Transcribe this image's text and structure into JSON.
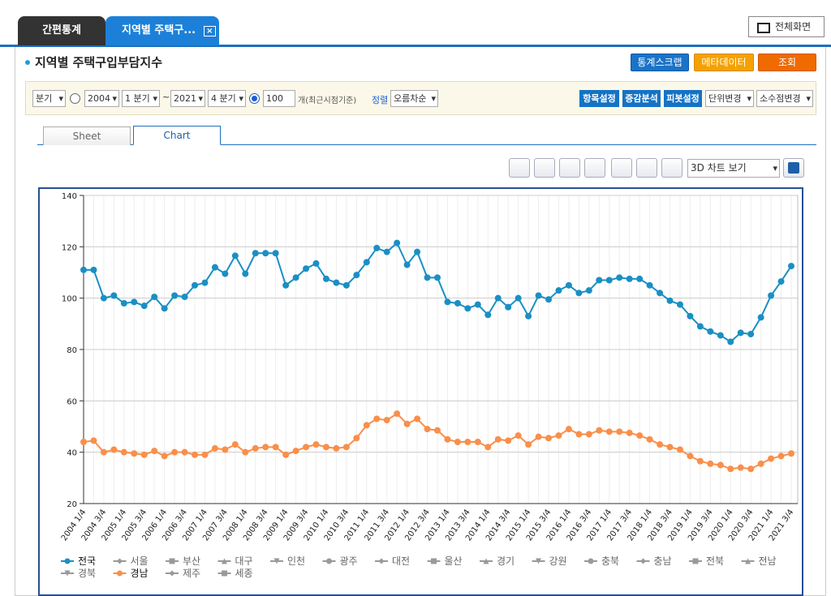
{
  "tabs": [
    "간편통계",
    "지역별 주택구..."
  ],
  "fullscreen": "전체화면",
  "page_title": "지역별 주택구입부담지수",
  "actions": [
    "통계스크랩",
    "메타데이터",
    "조회"
  ],
  "filter": {
    "period_type": "분기",
    "start_year": "2004",
    "start_quarter": "1 분기",
    "range_sep": "~",
    "end_year": "2021",
    "end_quarter": "4 분기",
    "recent_count": "100",
    "recent_unit": "개(최근시점기준)",
    "sort_label": "정렬",
    "sort": "오름차순"
  },
  "tools": [
    "항목설정",
    "증감분석",
    "피봇설정"
  ],
  "options": [
    "단위변경",
    "소수점변경"
  ],
  "view_tabs": [
    "Sheet",
    "Chart"
  ],
  "chart_view": "3D 차트 보기",
  "chart_data": {
    "type": "line",
    "categories": [
      "2004 1/4",
      null,
      "2004 3/4",
      null,
      "2005 1/4",
      null,
      "2005 3/4",
      null,
      "2006 1/4",
      null,
      "2006 3/4",
      null,
      "2007 1/4",
      null,
      "2007 3/4",
      null,
      "2008 1/4",
      null,
      "2008 3/4",
      null,
      "2009 1/4",
      null,
      "2009 3/4",
      null,
      "2010 1/4",
      null,
      "2010 3/4",
      null,
      "2011 1/4",
      null,
      "2011 3/4",
      null,
      "2012 1/4",
      null,
      "2012 3/4",
      null,
      "2013 1/4",
      null,
      "2013 3/4",
      null,
      "2014 1/4",
      null,
      "2014 3/4",
      null,
      "2015 1/4",
      null,
      "2015 3/4",
      null,
      "2016 1/4",
      null,
      "2016 3/4",
      null,
      "2017 1/4",
      null,
      "2017 3/4",
      null,
      "2018 1/4",
      null,
      "2018 3/4",
      null,
      "2019 1/4",
      null,
      "2019 3/4",
      null,
      "2020 1/4",
      null,
      "2020 3/4",
      null,
      "2021 1/4",
      null,
      "2021 3/4"
    ],
    "series": [
      {
        "name": "전국",
        "color": "#1a8fc4",
        "visible": true,
        "values": [
          111,
          111,
          100,
          101,
          98,
          98.5,
          97,
          100.5,
          96,
          101,
          100.5,
          105,
          106,
          112,
          109.5,
          116.5,
          109.5,
          117.5,
          117.5,
          117.5,
          105,
          108,
          111.5,
          113.5,
          107.5,
          106,
          105,
          109,
          114,
          119.5,
          118,
          121.5,
          113,
          118,
          108,
          108,
          98.5,
          98,
          96,
          97.5,
          93.5,
          100,
          96.5,
          100,
          93,
          101,
          99.5,
          103,
          105,
          102,
          103,
          107,
          107,
          108,
          107.5,
          107.5,
          105,
          102,
          99,
          97.5,
          93,
          89,
          87,
          85.5,
          83,
          86.5,
          86,
          92.5,
          101,
          106.5,
          112.5
        ]
      },
      {
        "name": "서울",
        "color": "#999999",
        "visible": false
      },
      {
        "name": "부산",
        "color": "#999999",
        "visible": false
      },
      {
        "name": "대구",
        "color": "#999999",
        "visible": false
      },
      {
        "name": "인천",
        "color": "#999999",
        "visible": false
      },
      {
        "name": "광주",
        "color": "#999999",
        "visible": false
      },
      {
        "name": "대전",
        "color": "#999999",
        "visible": false
      },
      {
        "name": "울산",
        "color": "#999999",
        "visible": false
      },
      {
        "name": "경기",
        "color": "#999999",
        "visible": false
      },
      {
        "name": "강원",
        "color": "#999999",
        "visible": false
      },
      {
        "name": "충북",
        "color": "#999999",
        "visible": false
      },
      {
        "name": "충남",
        "color": "#999999",
        "visible": false
      },
      {
        "name": "전북",
        "color": "#999999",
        "visible": false
      },
      {
        "name": "전남",
        "color": "#999999",
        "visible": false
      },
      {
        "name": "경북",
        "color": "#999999",
        "visible": false
      },
      {
        "name": "경남",
        "color": "#f98f4a",
        "visible": true,
        "values": [
          44,
          44.5,
          40,
          41,
          40,
          39.5,
          39,
          40.5,
          38.5,
          40,
          40,
          39,
          39,
          41.5,
          41,
          43,
          40,
          41.5,
          42,
          42,
          39,
          40.5,
          42,
          43,
          42,
          41.5,
          42,
          45.5,
          50.5,
          53,
          52.5,
          55,
          51,
          53,
          49,
          48.5,
          45,
          44,
          44,
          44,
          42,
          45,
          44.5,
          46.5,
          43,
          46,
          45.5,
          46.5,
          49,
          47,
          47,
          48.5,
          48,
          48,
          47.5,
          46.5,
          45,
          43,
          42,
          41,
          38.5,
          36.5,
          35.5,
          35,
          33.5,
          34,
          33.5,
          35.5,
          37.5,
          38.5,
          39.5
        ]
      },
      {
        "name": "제주",
        "color": "#999999",
        "visible": false
      },
      {
        "name": "세종",
        "color": "#999999",
        "visible": false
      }
    ],
    "ylim": [
      20,
      140
    ],
    "yticks": [
      20,
      40,
      60,
      80,
      100,
      120,
      140
    ],
    "grid": true,
    "legend": "bottom"
  }
}
